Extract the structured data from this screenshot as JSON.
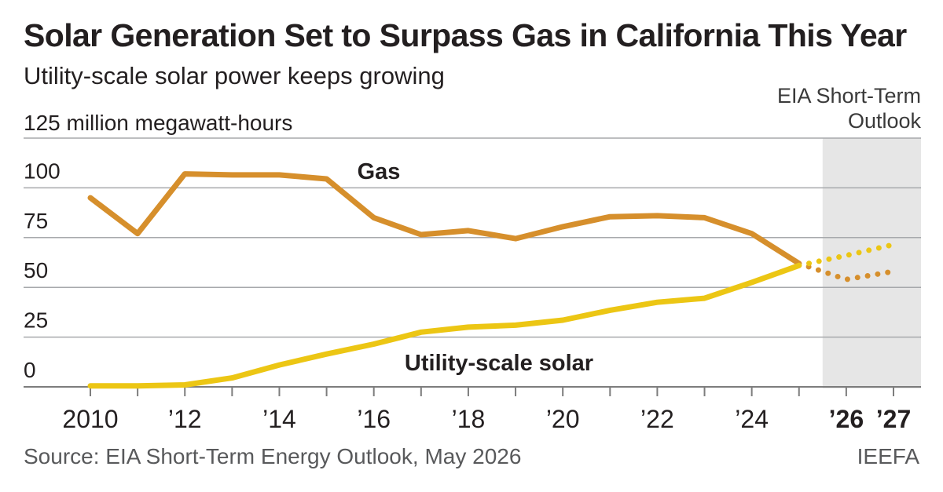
{
  "title": "Solar Generation Set to Surpass Gas in California This Year",
  "subtitle": "Utility-scale solar power keeps growing",
  "forecast_label": "EIA Short-Term Outlook",
  "source": "Source: EIA Short-Term Energy Outlook, May 2026",
  "credit": "IEEFA",
  "colors": {
    "gas": "#d68f2c",
    "solar": "#ecc614",
    "forecast_band": "#e6e6e6",
    "grid": "#a7a9ac",
    "axis": "#7d7d7d"
  },
  "chart_data": {
    "type": "line",
    "ylabel": "125 million megawatt-hours",
    "ylim": [
      0,
      125
    ],
    "yticks": [
      0,
      25,
      50,
      75,
      100
    ],
    "xlim": [
      2010,
      2027
    ],
    "xticks": [
      {
        "x": 2010,
        "label": "2010",
        "bold": false
      },
      {
        "x": 2012,
        "label": "’12",
        "bold": false
      },
      {
        "x": 2014,
        "label": "’14",
        "bold": false
      },
      {
        "x": 2016,
        "label": "’16",
        "bold": false
      },
      {
        "x": 2018,
        "label": "’18",
        "bold": false
      },
      {
        "x": 2020,
        "label": "’20",
        "bold": false
      },
      {
        "x": 2022,
        "label": "’22",
        "bold": false
      },
      {
        "x": 2024,
        "label": "’24",
        "bold": false
      },
      {
        "x": 2026,
        "label": "’26",
        "bold": true
      },
      {
        "x": 2027,
        "label": "’27",
        "bold": true
      }
    ],
    "forecast_start": 2025.5,
    "grid": true,
    "series": [
      {
        "name": "Gas",
        "key": "gas",
        "x": [
          2010,
          2011,
          2012,
          2013,
          2014,
          2015,
          2016,
          2017,
          2018,
          2019,
          2020,
          2021,
          2022,
          2023,
          2024,
          2025
        ],
        "values": [
          95,
          77,
          107,
          106.5,
          106.5,
          104.5,
          85,
          76.5,
          78.5,
          74.5,
          80.5,
          85.5,
          86,
          85,
          77,
          62
        ],
        "forecast_x": [
          2025,
          2026,
          2027
        ],
        "forecast_values": [
          62,
          54,
          58
        ]
      },
      {
        "name": "Utility-scale solar",
        "key": "solar",
        "x": [
          2010,
          2011,
          2012,
          2013,
          2014,
          2015,
          2016,
          2017,
          2018,
          2019,
          2020,
          2021,
          2022,
          2023,
          2024,
          2025
        ],
        "values": [
          0.5,
          0.5,
          1,
          4.5,
          11,
          16.5,
          21.5,
          27.5,
          30,
          31,
          33.5,
          38.5,
          42.5,
          44.5,
          52.5,
          61
        ],
        "forecast_x": [
          2025,
          2026,
          2027
        ],
        "forecast_values": [
          61,
          66,
          71.5
        ]
      }
    ]
  }
}
